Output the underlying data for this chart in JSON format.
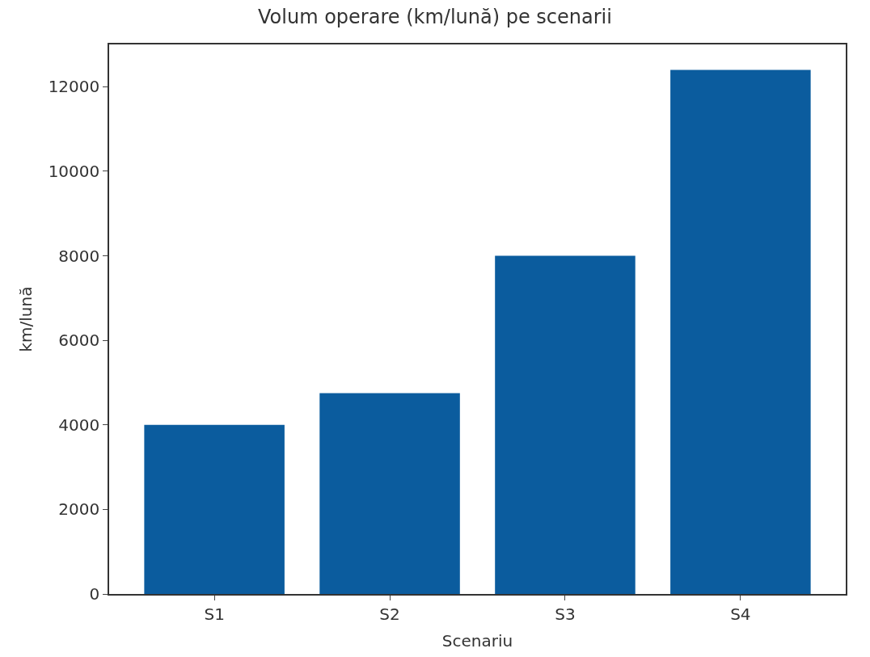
{
  "chart_data": {
    "type": "bar",
    "title": "Volum operare (km/lună) pe scenarii",
    "xlabel": "Scenariu",
    "ylabel": "km/lună",
    "categories": [
      "S1",
      "S2",
      "S3",
      "S4"
    ],
    "values": [
      4000,
      4750,
      8000,
      12400
    ],
    "color": "#0b5c9e",
    "ylim": [
      0,
      13000
    ],
    "yticks": [
      0,
      2000,
      4000,
      6000,
      8000,
      10000,
      12000
    ]
  }
}
